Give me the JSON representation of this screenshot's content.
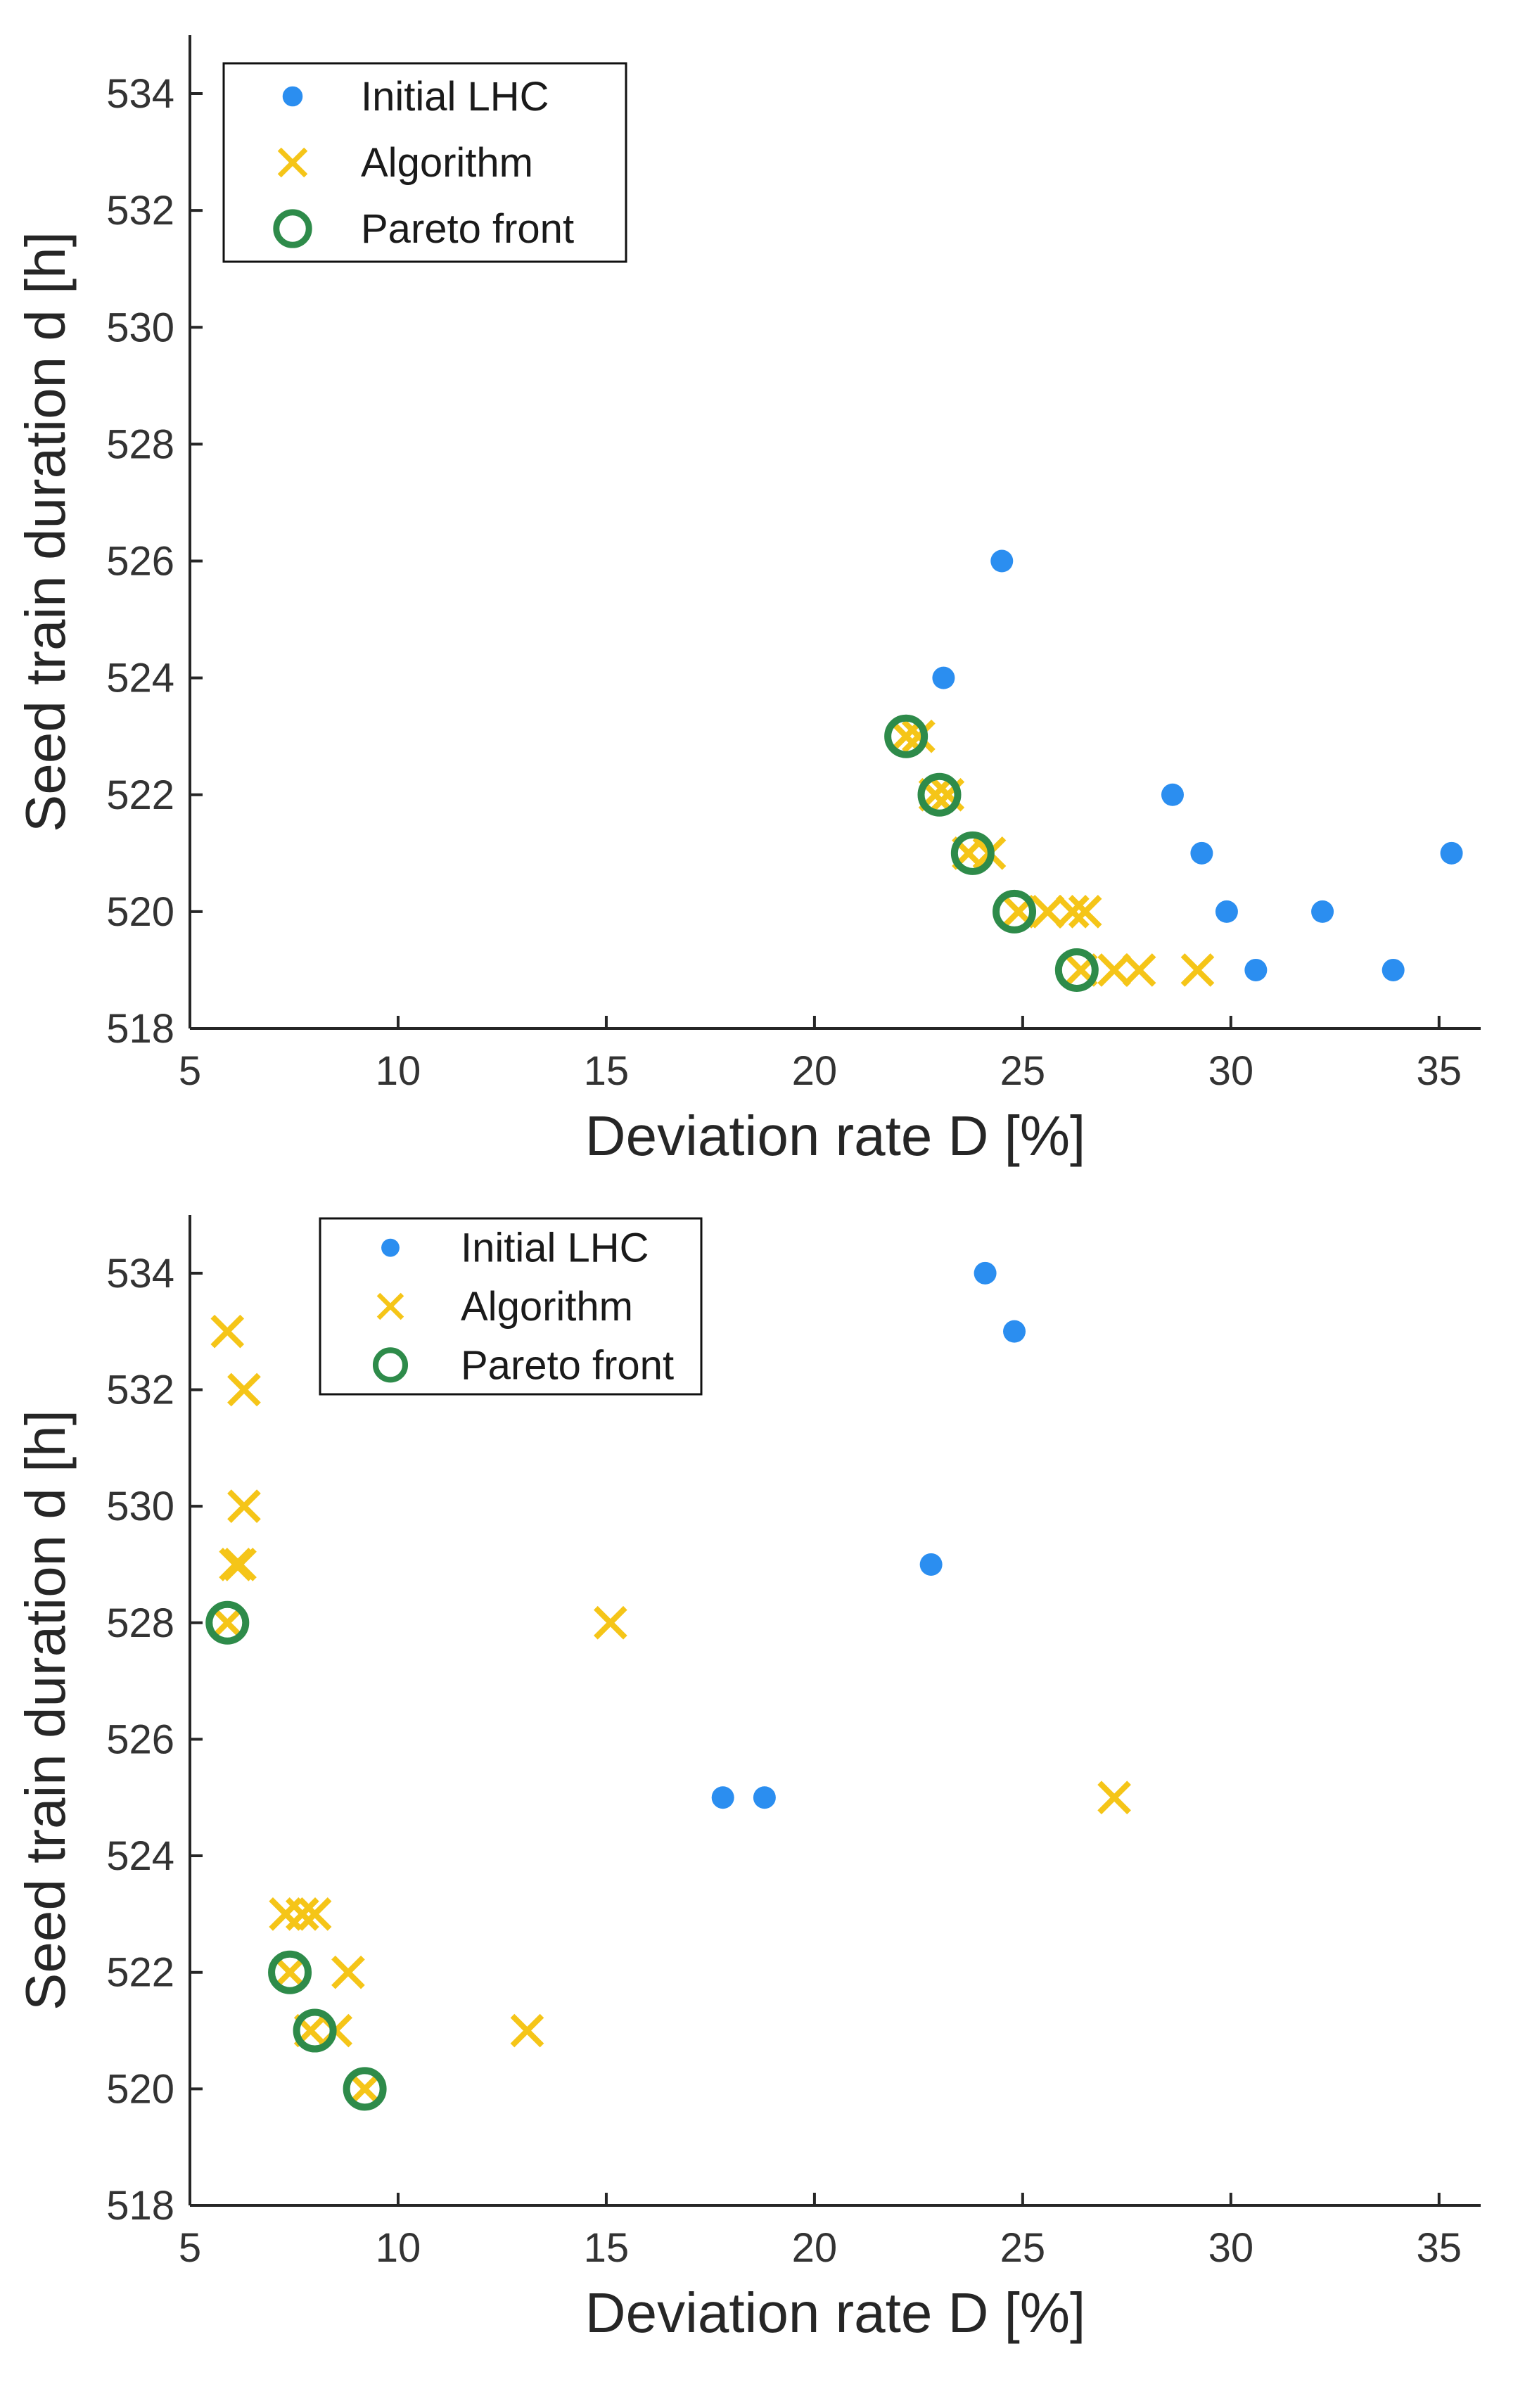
{
  "colors": {
    "initial": "#2b8ef0",
    "algorithm": "#f5c518",
    "pareto": "#2e8b4a",
    "axis": "#262626"
  },
  "chart_data": [
    {
      "type": "scatter",
      "title": "",
      "xlabel": "Deviation rate  D [%]",
      "ylabel": "Seed train duration  d [h]",
      "xlim": [
        5,
        36
      ],
      "ylim": [
        518,
        535
      ],
      "xticks": [
        5,
        10,
        15,
        20,
        25,
        30,
        35
      ],
      "yticks": [
        518,
        520,
        522,
        524,
        526,
        528,
        530,
        532,
        534
      ],
      "grid": false,
      "legend_position": "top-left",
      "series": [
        {
          "name": "Initial LHC",
          "marker": "dot",
          "points": [
            [
              24.5,
              526
            ],
            [
              23.1,
              524
            ],
            [
              28.6,
              522
            ],
            [
              29.3,
              521
            ],
            [
              35.3,
              521
            ],
            [
              29.9,
              520
            ],
            [
              32.2,
              520
            ],
            [
              30.6,
              519
            ],
            [
              33.9,
              519
            ]
          ]
        },
        {
          "name": "Algorithm",
          "marker": "x",
          "points": [
            [
              22.2,
              523
            ],
            [
              22.5,
              523
            ],
            [
              22.9,
              522
            ],
            [
              23.2,
              522
            ],
            [
              23.7,
              521
            ],
            [
              24.2,
              521
            ],
            [
              24.9,
              520
            ],
            [
              25.6,
              520
            ],
            [
              26.2,
              520
            ],
            [
              26.5,
              520
            ],
            [
              26.4,
              519
            ],
            [
              27.2,
              519
            ],
            [
              27.8,
              519
            ],
            [
              29.2,
              519
            ]
          ]
        },
        {
          "name": "Pareto front",
          "marker": "circle",
          "points": [
            [
              22.2,
              523
            ],
            [
              23.0,
              522
            ],
            [
              23.8,
              521
            ],
            [
              24.8,
              520
            ],
            [
              26.3,
              519
            ]
          ]
        }
      ]
    },
    {
      "type": "scatter",
      "title": "",
      "xlabel": "Deviation rate D [%]",
      "ylabel": "Seed train duration d [h]",
      "xlim": [
        5,
        36
      ],
      "ylim": [
        518,
        535
      ],
      "xticks": [
        5,
        10,
        15,
        20,
        25,
        30,
        35
      ],
      "yticks": [
        518,
        520,
        522,
        524,
        526,
        528,
        530,
        532,
        534
      ],
      "grid": false,
      "legend_position": "top-left",
      "series": [
        {
          "name": "Initial LHC",
          "marker": "dot",
          "points": [
            [
              24.1,
              534
            ],
            [
              24.8,
              533
            ],
            [
              22.8,
              529
            ],
            [
              17.8,
              525
            ],
            [
              18.8,
              525
            ]
          ]
        },
        {
          "name": "Algorithm",
          "marker": "x",
          "points": [
            [
              5.9,
              533
            ],
            [
              6.3,
              532
            ],
            [
              6.3,
              530
            ],
            [
              6.1,
              529
            ],
            [
              6.2,
              529
            ],
            [
              5.9,
              528
            ],
            [
              15.1,
              528
            ],
            [
              27.2,
              525
            ],
            [
              7.3,
              523
            ],
            [
              7.7,
              523
            ],
            [
              8.0,
              523
            ],
            [
              7.4,
              522
            ],
            [
              8.8,
              522
            ],
            [
              7.9,
              521
            ],
            [
              8.5,
              521
            ],
            [
              13.1,
              521
            ],
            [
              9.2,
              520
            ]
          ]
        },
        {
          "name": "Pareto front",
          "marker": "circle",
          "points": [
            [
              5.9,
              528
            ],
            [
              7.4,
              522
            ],
            [
              8.0,
              521
            ],
            [
              9.2,
              520
            ]
          ]
        }
      ]
    }
  ]
}
